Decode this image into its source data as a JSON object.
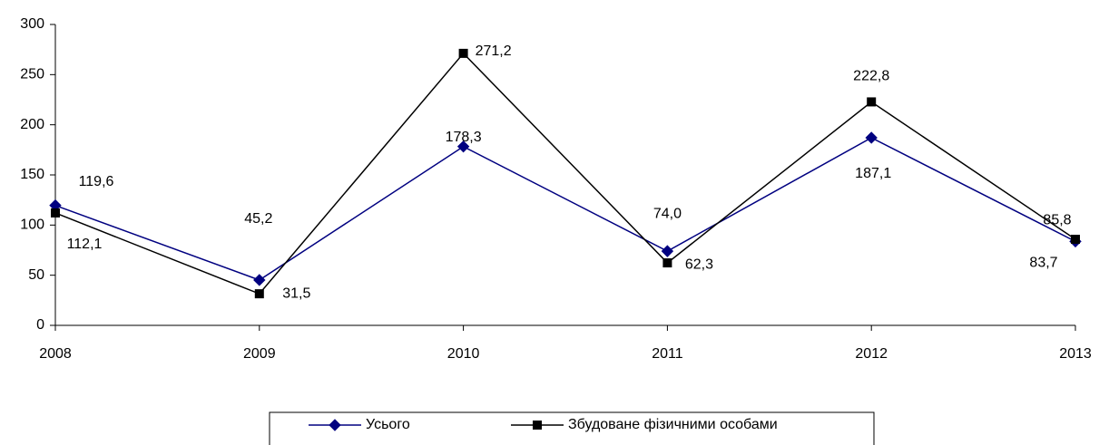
{
  "chart_data": {
    "type": "line",
    "categories": [
      "2008",
      "2009",
      "2010",
      "2011",
      "2012",
      "2013"
    ],
    "series": [
      {
        "name": "Усього",
        "color": "#000080",
        "marker": "diamond",
        "values": [
          119.6,
          45.2,
          178.3,
          74.0,
          187.1,
          83.7
        ],
        "value_labels": [
          "119,6",
          "45,2",
          "178,3",
          "74,0",
          "187,1",
          "83,7"
        ]
      },
      {
        "name": "Збудоване фізичними особами",
        "color": "#000000",
        "marker": "square",
        "values": [
          112.1,
          31.5,
          271.2,
          62.3,
          222.8,
          85.8
        ],
        "value_labels": [
          "112,1",
          "31,5",
          "271,2",
          "62,3",
          "222,8",
          "85,8"
        ]
      }
    ],
    "ylim": [
      0,
      300
    ],
    "yticks": [
      0,
      50,
      100,
      150,
      200,
      250,
      300
    ],
    "legend": "bottom"
  }
}
